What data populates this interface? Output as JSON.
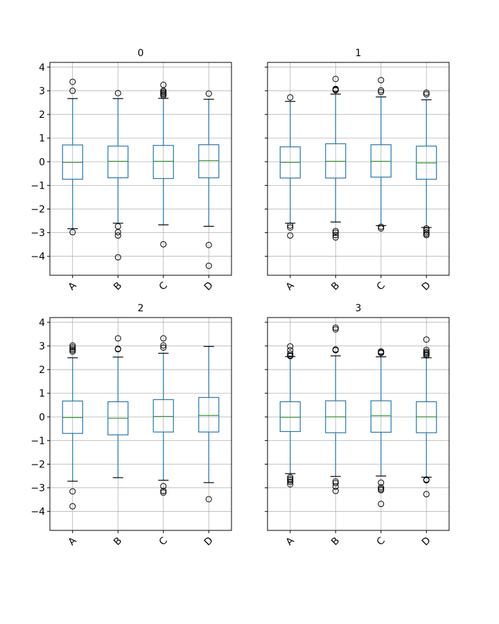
{
  "chart_data": {
    "type": "boxplot",
    "layout": {
      "rows": 2,
      "cols": 2,
      "sharey": true
    },
    "ylim": [
      -4.8,
      4.2
    ],
    "yticks": [
      -4,
      -3,
      -2,
      -1,
      0,
      1,
      2,
      3,
      4
    ],
    "categories": [
      "A",
      "B",
      "C",
      "D"
    ],
    "grid": true,
    "colors": {
      "box": "#1f77b4",
      "median": "#2ca02c",
      "grid": "#b0b0b0",
      "outlier": "#000000"
    },
    "subplots": [
      {
        "title": "0",
        "boxes": [
          {
            "name": "A",
            "whislo": -2.83,
            "q1": -0.74,
            "med": -0.03,
            "q3": 0.71,
            "whishi": 2.67,
            "fliers": [
              3.38,
              3.0,
              -2.98
            ]
          },
          {
            "name": "B",
            "whislo": -2.6,
            "q1": -0.68,
            "med": 0.02,
            "q3": 0.66,
            "whishi": 2.67,
            "fliers": [
              2.9,
              -2.73,
              -2.98,
              -3.12,
              -4.04
            ]
          },
          {
            "name": "C",
            "whislo": -2.67,
            "q1": -0.71,
            "med": 0.02,
            "q3": 0.69,
            "whishi": 2.68,
            "fliers": [
              3.25,
              3.0,
              2.95,
              2.9,
              2.85,
              2.8,
              -3.49
            ]
          },
          {
            "name": "D",
            "whislo": -2.73,
            "q1": -0.68,
            "med": 0.05,
            "q3": 0.72,
            "whishi": 2.64,
            "fliers": [
              2.88,
              -3.52,
              -4.4
            ]
          }
        ]
      },
      {
        "title": "1",
        "boxes": [
          {
            "name": "A",
            "whislo": -2.6,
            "q1": -0.69,
            "med": -0.03,
            "q3": 0.63,
            "whishi": 2.55,
            "fliers": [
              2.72,
              -2.7,
              -2.78,
              -3.12
            ]
          },
          {
            "name": "B",
            "whislo": -2.55,
            "q1": -0.69,
            "med": 0.02,
            "q3": 0.76,
            "whishi": 2.86,
            "fliers": [
              3.5,
              3.08,
              3.05,
              3.02,
              -2.93,
              -3.0,
              -3.1,
              -3.2
            ]
          },
          {
            "name": "C",
            "whislo": -2.7,
            "q1": -0.65,
            "med": 0.02,
            "q3": 0.72,
            "whishi": 2.74,
            "fliers": [
              3.45,
              3.02,
              2.95,
              -2.75,
              -2.82
            ]
          },
          {
            "name": "D",
            "whislo": -2.78,
            "q1": -0.74,
            "med": -0.05,
            "q3": 0.66,
            "whishi": 2.62,
            "fliers": [
              2.92,
              2.85,
              -2.82,
              -2.9,
              -2.98,
              -3.05,
              -3.1
            ]
          }
        ]
      },
      {
        "title": "2",
        "boxes": [
          {
            "name": "A",
            "whislo": -2.72,
            "q1": -0.7,
            "med": -0.03,
            "q3": 0.67,
            "whishi": 2.5,
            "fliers": [
              3.02,
              2.95,
              2.88,
              2.82,
              2.76,
              -3.15,
              -3.78
            ]
          },
          {
            "name": "B",
            "whislo": -2.57,
            "q1": -0.76,
            "med": -0.06,
            "q3": 0.64,
            "whishi": 2.53,
            "fliers": [
              3.32,
              2.88,
              2.86
            ]
          },
          {
            "name": "C",
            "whislo": -2.68,
            "q1": -0.64,
            "med": 0.02,
            "q3": 0.73,
            "whishi": 2.69,
            "fliers": [
              3.32,
              3.02,
              2.93,
              -2.93,
              -3.13,
              -3.2
            ]
          },
          {
            "name": "D",
            "whislo": -2.78,
            "q1": -0.64,
            "med": 0.06,
            "q3": 0.82,
            "whishi": 2.98,
            "fliers": [
              -3.48
            ]
          }
        ]
      },
      {
        "title": "3",
        "boxes": [
          {
            "name": "A",
            "whislo": -2.4,
            "q1": -0.62,
            "med": -0.02,
            "q3": 0.64,
            "whishi": 2.55,
            "fliers": [
              2.98,
              2.82,
              2.68,
              2.6,
              2.57,
              -2.55,
              -2.62,
              -2.68,
              -2.75,
              -2.85
            ]
          },
          {
            "name": "B",
            "whislo": -2.52,
            "q1": -0.67,
            "med": 0.0,
            "q3": 0.68,
            "whishi": 2.58,
            "fliers": [
              3.77,
              3.7,
              2.85,
              2.82,
              -2.73,
              -2.8,
              -2.95,
              -3.13
            ]
          },
          {
            "name": "C",
            "whislo": -2.5,
            "q1": -0.65,
            "med": 0.05,
            "q3": 0.68,
            "whishi": 2.54,
            "fliers": [
              2.77,
              2.73,
              2.7,
              -2.78,
              -2.98,
              -3.05,
              -3.1,
              -3.68
            ]
          },
          {
            "name": "D",
            "whislo": -2.55,
            "q1": -0.67,
            "med": 0.0,
            "q3": 0.64,
            "whishi": 2.5,
            "fliers": [
              3.27,
              2.83,
              2.75,
              2.7,
              2.65,
              2.6,
              -2.65,
              -2.68,
              -3.27
            ]
          }
        ]
      }
    ]
  }
}
